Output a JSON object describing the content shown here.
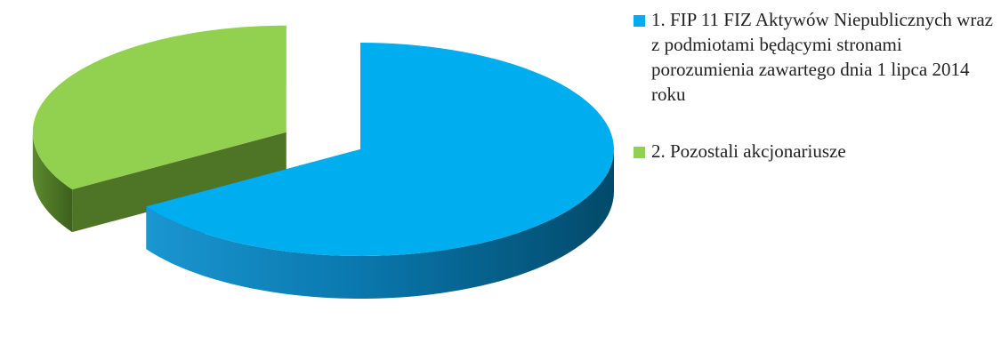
{
  "chart_data": {
    "type": "pie",
    "style": "3d-exploded",
    "title": "",
    "categories": [
      "1. FIP 11 FIZ Aktywów Niepublicznych wraz z podmiotami będącymi stronami porozumienia zawartego dnia 1 lipca 2014 roku",
      "2. Pozostali akcjonariusze"
    ],
    "values": [
      66,
      34
    ],
    "colors": [
      "#00AEEF",
      "#92D050"
    ],
    "legend_position": "right"
  }
}
